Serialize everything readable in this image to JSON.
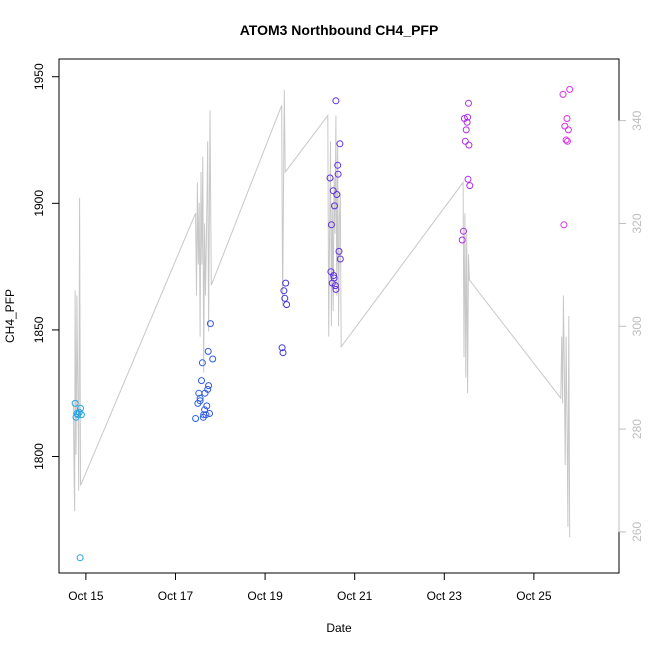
{
  "chart_data": {
    "type": "scatter",
    "title": "ATOM3 Northbound CH4_PFP",
    "xlabel": "Date",
    "ylabel": "CH4_PFP",
    "x_ticks": [
      "Oct 15",
      "Oct 17",
      "Oct 19",
      "Oct 21",
      "Oct 23",
      "Oct 25"
    ],
    "x_tick_values": [
      15,
      17,
      19,
      21,
      23,
      25
    ],
    "xlim": [
      14.4,
      26.9
    ],
    "ylim": [
      1754,
      1957
    ],
    "y_ticks": [
      1800,
      1850,
      1900,
      1950
    ],
    "y2lim": [
      252,
      352
    ],
    "y2_ticks": [
      260,
      280,
      300,
      320,
      340
    ],
    "grid": false,
    "legend": "none",
    "colors": {
      "secondary_line": "#c8c8c8",
      "right_axis": "#bebebe",
      "point_gradient": [
        "#22a8e8",
        "#2d6ee8",
        "#3a3ae0",
        "#7a2ee0",
        "#b22ee8",
        "#e030e8"
      ]
    },
    "series": [
      {
        "kind": "points",
        "axis": "left",
        "points": [
          [
            14.78,
            1815.5
          ],
          [
            14.8,
            1817
          ],
          [
            14.76,
            1821
          ],
          [
            14.82,
            1816.5
          ],
          [
            14.85,
            1817.5
          ],
          [
            14.88,
            1819
          ],
          [
            14.9,
            1816.5
          ],
          [
            14.87,
            1760
          ],
          [
            17.45,
            1815
          ],
          [
            17.5,
            1821
          ],
          [
            17.52,
            1825
          ],
          [
            17.55,
            1823
          ],
          [
            17.58,
            1830
          ],
          [
            17.6,
            1837
          ],
          [
            17.62,
            1815.5
          ],
          [
            17.63,
            1816.5
          ],
          [
            17.65,
            1818.5
          ],
          [
            17.66,
            1825
          ],
          [
            17.68,
            1816.5
          ],
          [
            17.7,
            1820
          ],
          [
            17.72,
            1826.5
          ],
          [
            17.74,
            1828
          ],
          [
            17.76,
            1817
          ],
          [
            17.78,
            1852.5
          ],
          [
            17.83,
            1838.5
          ],
          [
            17.55,
            1822
          ],
          [
            17.73,
            1841.5
          ],
          [
            19.38,
            1843
          ],
          [
            19.4,
            1841
          ],
          [
            19.42,
            1865.5
          ],
          [
            19.44,
            1862.5
          ],
          [
            19.46,
            1868.5
          ],
          [
            19.48,
            1860
          ],
          [
            20.45,
            1910
          ],
          [
            20.47,
            1873
          ],
          [
            20.5,
            1868.5
          ],
          [
            20.48,
            1891.5
          ],
          [
            20.52,
            1905
          ],
          [
            20.54,
            1870.5
          ],
          [
            20.55,
            1899
          ],
          [
            20.57,
            1867.5
          ],
          [
            20.58,
            1940.5
          ],
          [
            20.6,
            1903.5
          ],
          [
            20.58,
            1866
          ],
          [
            20.62,
            1915
          ],
          [
            20.63,
            1911.5
          ],
          [
            20.65,
            1881
          ],
          [
            20.67,
            1923.5
          ],
          [
            20.68,
            1878
          ],
          [
            20.53,
            1871.5
          ],
          [
            23.4,
            1885.5
          ],
          [
            23.43,
            1889
          ],
          [
            23.45,
            1933.5
          ],
          [
            23.47,
            1924.5
          ],
          [
            23.49,
            1929
          ],
          [
            23.51,
            1932
          ],
          [
            23.52,
            1934
          ],
          [
            23.54,
            1939.5
          ],
          [
            23.55,
            1923
          ],
          [
            23.53,
            1909.5
          ],
          [
            23.57,
            1907
          ],
          [
            25.65,
            1943
          ],
          [
            25.67,
            1891.5
          ],
          [
            25.69,
            1930.5
          ],
          [
            25.72,
            1925
          ],
          [
            25.74,
            1933.5
          ],
          [
            25.75,
            1924.5
          ],
          [
            25.77,
            1929
          ],
          [
            25.8,
            1945
          ]
        ]
      },
      {
        "kind": "line",
        "axis": "right",
        "points": [
          [
            14.72,
            285
          ],
          [
            14.74,
            269
          ],
          [
            14.75,
            264
          ],
          [
            14.76,
            307
          ],
          [
            14.78,
            275
          ],
          [
            14.79,
            289
          ],
          [
            14.8,
            306
          ],
          [
            14.81,
            295
          ],
          [
            14.83,
            280
          ],
          [
            14.84,
            268
          ],
          [
            14.86,
            325
          ],
          [
            14.88,
            269
          ],
          [
            17.45,
            322
          ],
          [
            17.47,
            306
          ],
          [
            17.49,
            328
          ],
          [
            17.51,
            312
          ],
          [
            17.53,
            324
          ],
          [
            17.55,
            298
          ],
          [
            17.57,
            330
          ],
          [
            17.59,
            312
          ],
          [
            17.61,
            333
          ],
          [
            17.63,
            291
          ],
          [
            17.65,
            320
          ],
          [
            17.67,
            306
          ],
          [
            17.7,
            322
          ],
          [
            17.72,
            336
          ],
          [
            17.74,
            299
          ],
          [
            17.77,
            342
          ],
          [
            17.8,
            308
          ],
          [
            19.37,
            343
          ],
          [
            19.39,
            304
          ],
          [
            19.41,
            324
          ],
          [
            19.43,
            346
          ],
          [
            19.45,
            330
          ],
          [
            20.4,
            341
          ],
          [
            20.42,
            298
          ],
          [
            20.44,
            318
          ],
          [
            20.46,
            336
          ],
          [
            20.48,
            300
          ],
          [
            20.5,
            324
          ],
          [
            20.52,
            303
          ],
          [
            20.54,
            329
          ],
          [
            20.56,
            318
          ],
          [
            20.58,
            341
          ],
          [
            20.6,
            306
          ],
          [
            20.62,
            335
          ],
          [
            20.64,
            300
          ],
          [
            20.66,
            321
          ],
          [
            20.68,
            326
          ],
          [
            20.7,
            296
          ],
          [
            23.42,
            328
          ],
          [
            23.44,
            294
          ],
          [
            23.46,
            322
          ],
          [
            23.48,
            290
          ],
          [
            23.5,
            318
          ],
          [
            23.52,
            287
          ],
          [
            23.54,
            314
          ],
          [
            23.56,
            309
          ],
          [
            25.6,
            286
          ],
          [
            25.62,
            298
          ],
          [
            25.64,
            285
          ],
          [
            25.66,
            306
          ],
          [
            25.68,
            292
          ],
          [
            25.7,
            273
          ],
          [
            25.72,
            298
          ],
          [
            25.74,
            282
          ],
          [
            25.76,
            261
          ],
          [
            25.78,
            302
          ],
          [
            25.8,
            259
          ]
        ]
      }
    ]
  }
}
